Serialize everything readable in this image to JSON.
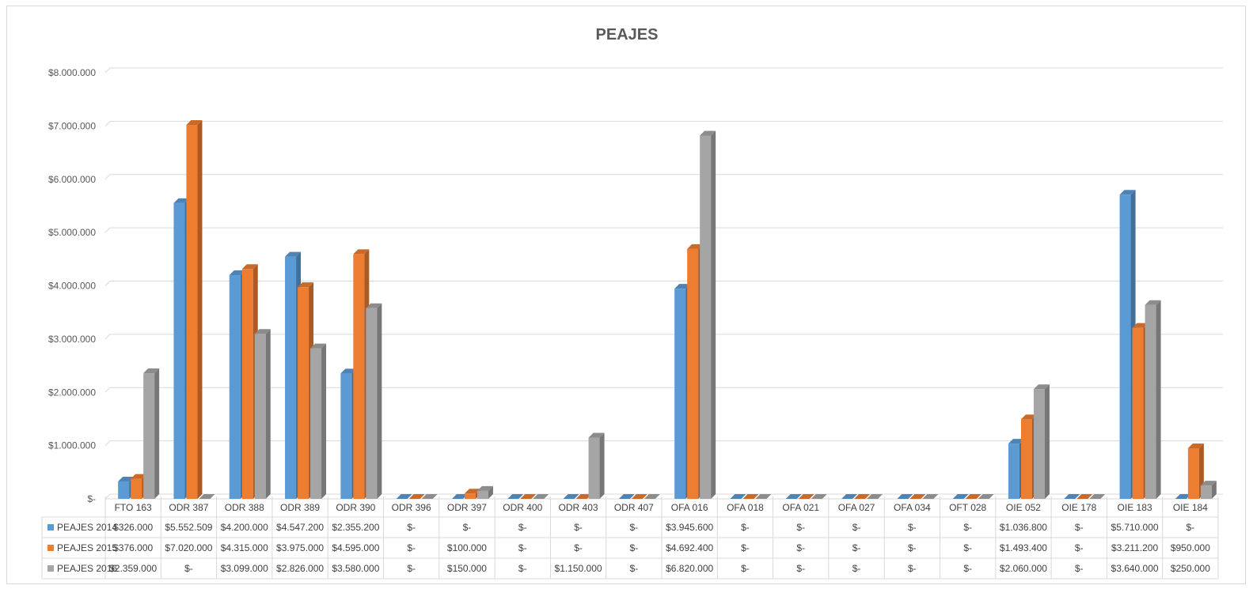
{
  "chart_data": {
    "type": "bar",
    "title": "PEAJES",
    "categories": [
      "FTO 163",
      "ODR 387",
      "ODR 388",
      "ODR 389",
      "ODR 390",
      "ODR 396",
      "ODR 397",
      "ODR 400",
      "ODR 403",
      "ODR 407",
      "OFA 016",
      "OFA 018",
      "OFA 021",
      "OFA 027",
      "OFA 034",
      "OFT 028",
      "OIE 052",
      "OIE 178",
      "OIE 183",
      "OIE 184"
    ],
    "series": [
      {
        "name": "PEAJES 2014",
        "color": "#5b9bd5",
        "values": [
          326000,
          5552509,
          4200000,
          4547200,
          2355200,
          0,
          0,
          0,
          0,
          0,
          3945600,
          0,
          0,
          0,
          0,
          0,
          1036800,
          0,
          5710000,
          0
        ],
        "labels": [
          "$326.000",
          "$5.552.509",
          "$4.200.000",
          "$4.547.200",
          "$2.355.200",
          "$-",
          "$-",
          "$-",
          "$-",
          "$-",
          "$3.945.600",
          "$-",
          "$-",
          "$-",
          "$-",
          "$-",
          "$1.036.800",
          "$-",
          "$5.710.000",
          "$-"
        ]
      },
      {
        "name": "PEAJES 2015",
        "color": "#ed7d31",
        "values": [
          376000,
          7020000,
          4315000,
          3975000,
          4595000,
          0,
          100000,
          0,
          0,
          0,
          4692400,
          0,
          0,
          0,
          0,
          0,
          1493400,
          0,
          3211200,
          950000
        ],
        "labels": [
          "$376.000",
          "$7.020.000",
          "$4.315.000",
          "$3.975.000",
          "$4.595.000",
          "$-",
          "$100.000",
          "$-",
          "$-",
          "$-",
          "$4.692.400",
          "$-",
          "$-",
          "$-",
          "$-",
          "$-",
          "$1.493.400",
          "$-",
          "$3.211.200",
          "$950.000"
        ]
      },
      {
        "name": "PEAJES 2016",
        "color": "#a5a5a5",
        "values": [
          2359000,
          0,
          3099000,
          2826000,
          3580000,
          0,
          150000,
          0,
          1150000,
          0,
          6820000,
          0,
          0,
          0,
          0,
          0,
          2060000,
          0,
          3640000,
          250000
        ],
        "labels": [
          "$2.359.000",
          "$-",
          "$3.099.000",
          "$2.826.000",
          "$3.580.000",
          "$-",
          "$150.000",
          "$-",
          "$1.150.000",
          "$-",
          "$6.820.000",
          "$-",
          "$-",
          "$-",
          "$-",
          "$-",
          "$2.060.000",
          "$-",
          "$3.640.000",
          "$250.000"
        ]
      }
    ],
    "ylim": [
      0,
      8000000
    ],
    "yticks": [
      0,
      1000000,
      2000000,
      3000000,
      4000000,
      5000000,
      6000000,
      7000000,
      8000000
    ],
    "ytick_labels": [
      "$-",
      "$1.000.000",
      "$2.000.000",
      "$3.000.000",
      "$4.000.000",
      "$5.000.000",
      "$6.000.000",
      "$7.000.000",
      "$8.000.000"
    ],
    "grid": true,
    "legend": "data-table-below",
    "bar_style": "3d"
  }
}
